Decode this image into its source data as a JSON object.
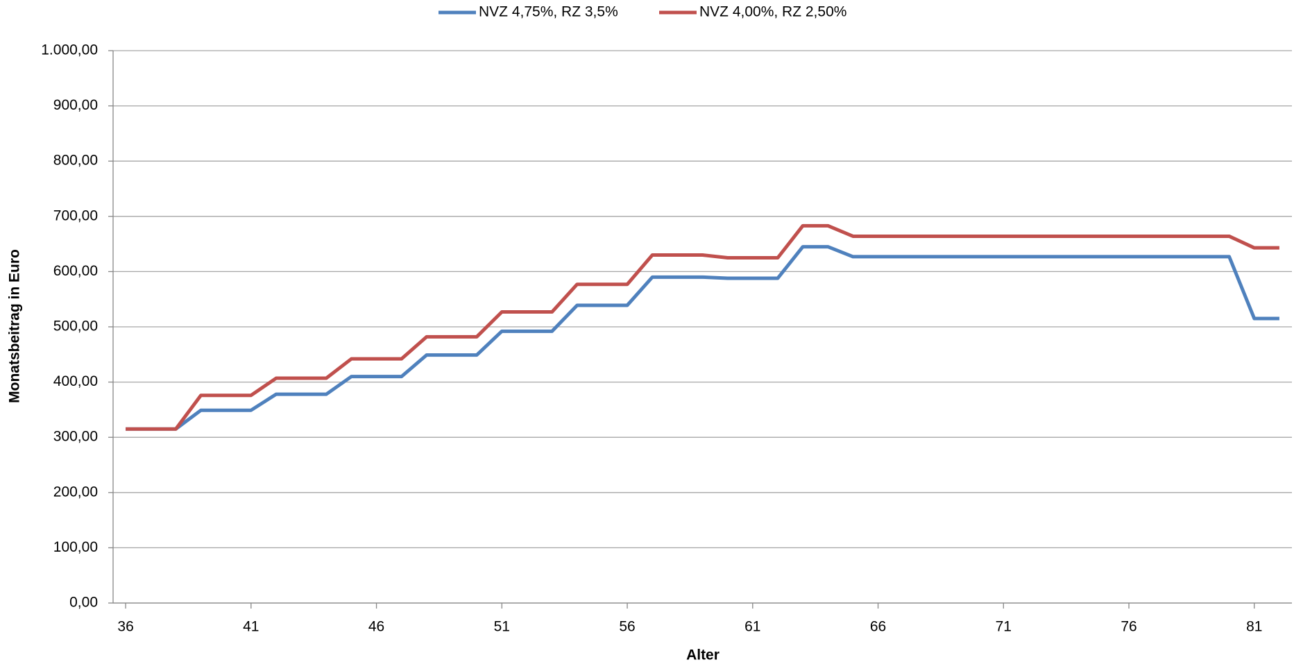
{
  "chart_data": {
    "type": "line",
    "x_label": "Alter",
    "y_label": "Monatsbeitrag in Euro",
    "x": [
      36,
      37,
      38,
      39,
      40,
      41,
      42,
      43,
      44,
      45,
      46,
      47,
      48,
      49,
      50,
      51,
      52,
      53,
      54,
      55,
      56,
      57,
      58,
      59,
      60,
      61,
      62,
      63,
      64,
      65,
      66,
      67,
      68,
      69,
      70,
      71,
      72,
      73,
      74,
      75,
      76,
      77,
      78,
      79,
      80,
      81,
      82
    ],
    "xlim": [
      35.5,
      82.5
    ],
    "xticks": [
      36,
      41,
      46,
      51,
      56,
      61,
      66,
      71,
      76,
      81
    ],
    "ylim": [
      0,
      1000
    ],
    "yticks": [
      {
        "value": 0,
        "label": "0,00"
      },
      {
        "value": 100,
        "label": "100,00"
      },
      {
        "value": 200,
        "label": "200,00"
      },
      {
        "value": 300,
        "label": "300,00"
      },
      {
        "value": 400,
        "label": "400,00"
      },
      {
        "value": 500,
        "label": "500,00"
      },
      {
        "value": 600,
        "label": "600,00"
      },
      {
        "value": 700,
        "label": "700,00"
      },
      {
        "value": 800,
        "label": "800,00"
      },
      {
        "value": 900,
        "label": "900,00"
      },
      {
        "value": 1000,
        "label": "1.000,00"
      }
    ],
    "grid": true,
    "legend": "top",
    "series": [
      {
        "name": "NVZ 4,75%, RZ 3,5%",
        "color": "#4f81bd",
        "values": [
          315,
          315,
          315,
          349,
          349,
          349,
          378,
          378,
          378,
          410,
          410,
          410,
          449,
          449,
          449,
          492,
          492,
          492,
          539,
          539,
          539,
          590,
          590,
          590,
          588,
          588,
          588,
          645,
          645,
          627,
          627,
          627,
          627,
          627,
          627,
          627,
          627,
          627,
          627,
          627,
          627,
          627,
          627,
          627,
          627,
          515,
          515
        ]
      },
      {
        "name": "NVZ 4,00%, RZ 2,50%",
        "color": "#c0504d",
        "values": [
          315,
          315,
          315,
          376,
          376,
          376,
          407,
          407,
          407,
          442,
          442,
          442,
          482,
          482,
          482,
          527,
          527,
          527,
          577,
          577,
          577,
          630,
          630,
          630,
          625,
          625,
          625,
          683,
          683,
          664,
          664,
          664,
          664,
          664,
          664,
          664,
          664,
          664,
          664,
          664,
          664,
          664,
          664,
          664,
          664,
          643,
          643
        ]
      }
    ]
  }
}
